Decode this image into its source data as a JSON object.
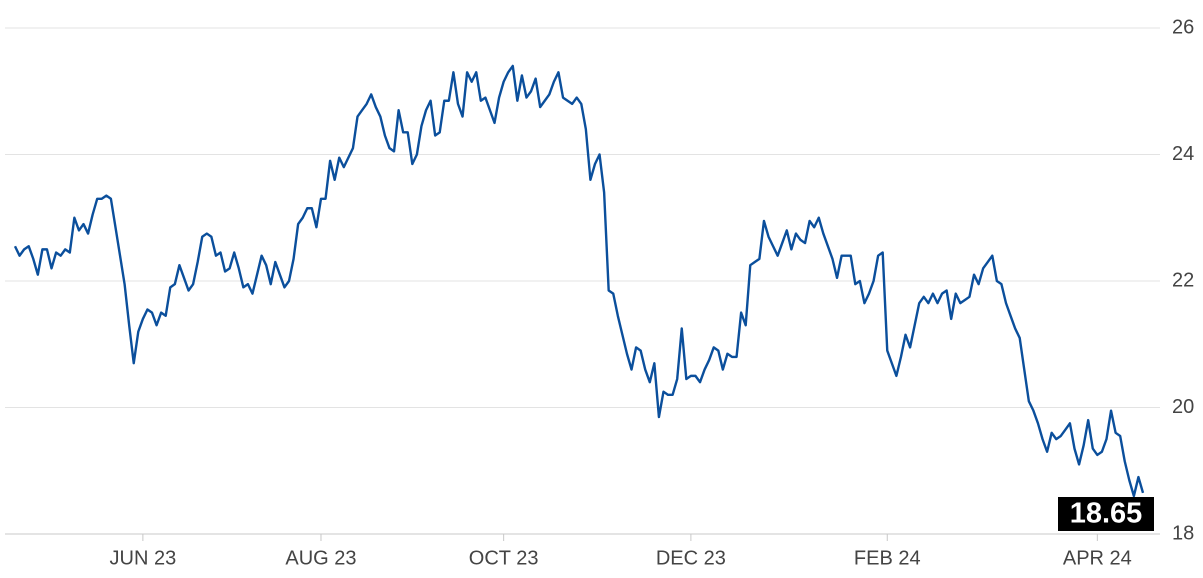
{
  "chart_data": {
    "type": "line",
    "categories": [
      null,
      null,
      null,
      null,
      null,
      null,
      null,
      null,
      null,
      null,
      null,
      null,
      null,
      null,
      null,
      null,
      null,
      null,
      null,
      null,
      null,
      null,
      null,
      null,
      null,
      null,
      null,
      null,
      "JUN 23",
      null,
      null,
      null,
      null,
      null,
      null,
      null,
      null,
      null,
      null,
      null,
      null,
      null,
      null,
      null,
      null,
      null,
      null,
      null,
      null,
      null,
      null,
      null,
      null,
      null,
      null,
      null,
      null,
      null,
      null,
      null,
      null,
      null,
      null,
      null,
      null,
      null,
      null,
      "AUG 23",
      null,
      null,
      null,
      null,
      null,
      null,
      null,
      null,
      null,
      null,
      null,
      null,
      null,
      null,
      null,
      null,
      null,
      null,
      null,
      null,
      null,
      null,
      null,
      null,
      null,
      null,
      null,
      null,
      null,
      null,
      null,
      null,
      null,
      null,
      null,
      null,
      null,
      null,
      null,
      "OCT 23",
      null,
      null,
      null,
      null,
      null,
      null,
      null,
      null,
      null,
      null,
      null,
      null,
      null,
      null,
      null,
      null,
      null,
      null,
      null,
      null,
      null,
      null,
      null,
      null,
      null,
      null,
      null,
      null,
      null,
      null,
      null,
      null,
      null,
      null,
      null,
      null,
      null,
      null,
      null,
      null,
      "DEC 23",
      null,
      null,
      null,
      null,
      null,
      null,
      null,
      null,
      null,
      null,
      null,
      null,
      null,
      null,
      null,
      null,
      null,
      null,
      null,
      null,
      null,
      null,
      null,
      null,
      null,
      null,
      null,
      null,
      null,
      null,
      null,
      null,
      null,
      null,
      null,
      null,
      null,
      null,
      null,
      null,
      null,
      null,
      "FEB 24",
      null,
      null,
      null,
      null,
      null,
      null,
      null,
      null,
      null,
      null,
      null,
      null,
      null,
      null,
      null,
      null,
      null,
      null,
      null,
      null,
      null,
      null,
      null,
      null,
      null,
      null,
      null,
      null,
      null,
      null,
      null,
      null,
      null,
      null,
      null,
      null,
      null,
      null,
      null,
      null,
      null,
      null,
      null,
      null,
      null,
      "APR 24",
      null,
      null,
      null,
      null,
      null,
      null,
      null,
      null,
      null,
      null
    ],
    "values": [
      22.55,
      22.4,
      22.5,
      22.55,
      22.35,
      22.1,
      22.5,
      22.5,
      22.2,
      22.45,
      22.4,
      22.5,
      22.45,
      23.0,
      22.8,
      22.9,
      22.75,
      23.05,
      23.3,
      23.3,
      23.35,
      23.3,
      22.85,
      22.4,
      21.95,
      21.3,
      20.7,
      21.2,
      21.4,
      21.55,
      21.5,
      21.3,
      21.5,
      21.45,
      21.9,
      21.95,
      22.25,
      22.05,
      21.85,
      21.95,
      22.3,
      22.7,
      22.75,
      22.7,
      22.4,
      22.45,
      22.15,
      22.2,
      22.45,
      22.2,
      21.9,
      21.95,
      21.8,
      22.1,
      22.4,
      22.25,
      21.95,
      22.3,
      22.1,
      21.9,
      22.0,
      22.35,
      22.9,
      23.0,
      23.15,
      23.15,
      22.85,
      23.3,
      23.3,
      23.9,
      23.6,
      23.95,
      23.8,
      23.95,
      24.1,
      24.6,
      24.7,
      24.8,
      24.95,
      24.75,
      24.6,
      24.3,
      24.1,
      24.05,
      24.7,
      24.35,
      24.35,
      23.85,
      24.0,
      24.45,
      24.7,
      24.85,
      24.3,
      24.35,
      24.85,
      24.85,
      25.3,
      24.8,
      24.6,
      25.3,
      25.15,
      25.3,
      24.85,
      24.9,
      24.7,
      24.5,
      24.9,
      25.15,
      25.3,
      25.4,
      24.85,
      25.25,
      24.9,
      25.0,
      25.2,
      24.75,
      24.85,
      24.95,
      25.15,
      25.3,
      24.9,
      24.85,
      24.8,
      24.9,
      24.8,
      24.4,
      23.6,
      23.85,
      24.0,
      23.4,
      21.85,
      21.8,
      21.45,
      21.15,
      20.85,
      20.6,
      20.95,
      20.9,
      20.6,
      20.4,
      20.7,
      19.85,
      20.25,
      20.2,
      20.2,
      20.45,
      21.25,
      20.45,
      20.5,
      20.5,
      20.4,
      20.6,
      20.75,
      20.95,
      20.9,
      20.6,
      20.85,
      20.8,
      20.8,
      21.5,
      21.3,
      22.25,
      22.3,
      22.35,
      22.95,
      22.7,
      22.55,
      22.4,
      22.6,
      22.8,
      22.5,
      22.75,
      22.65,
      22.6,
      22.95,
      22.85,
      23.0,
      22.75,
      22.55,
      22.35,
      22.05,
      22.4,
      22.4,
      22.4,
      21.95,
      22.0,
      21.65,
      21.8,
      22.0,
      22.4,
      22.45,
      20.9,
      20.7,
      20.5,
      20.8,
      21.15,
      20.95,
      21.3,
      21.65,
      21.75,
      21.65,
      21.8,
      21.65,
      21.8,
      21.85,
      21.4,
      21.8,
      21.65,
      21.7,
      21.75,
      22.1,
      21.95,
      22.2,
      22.3,
      22.4,
      22.0,
      21.95,
      21.65,
      21.45,
      21.25,
      21.1,
      20.6,
      20.1,
      19.95,
      19.75,
      19.5,
      19.3,
      19.6,
      19.5,
      19.55,
      19.65,
      19.75,
      19.35,
      19.1,
      19.4,
      19.8,
      19.35,
      19.25,
      19.3,
      19.5,
      19.95,
      19.6,
      19.55,
      19.15,
      18.85,
      18.6,
      18.9,
      18.65
    ],
    "color": "#0b4f9c",
    "ylim": [
      18,
      26
    ],
    "yticks": [
      18,
      20,
      22,
      24,
      26
    ],
    "grid": true
  }
}
